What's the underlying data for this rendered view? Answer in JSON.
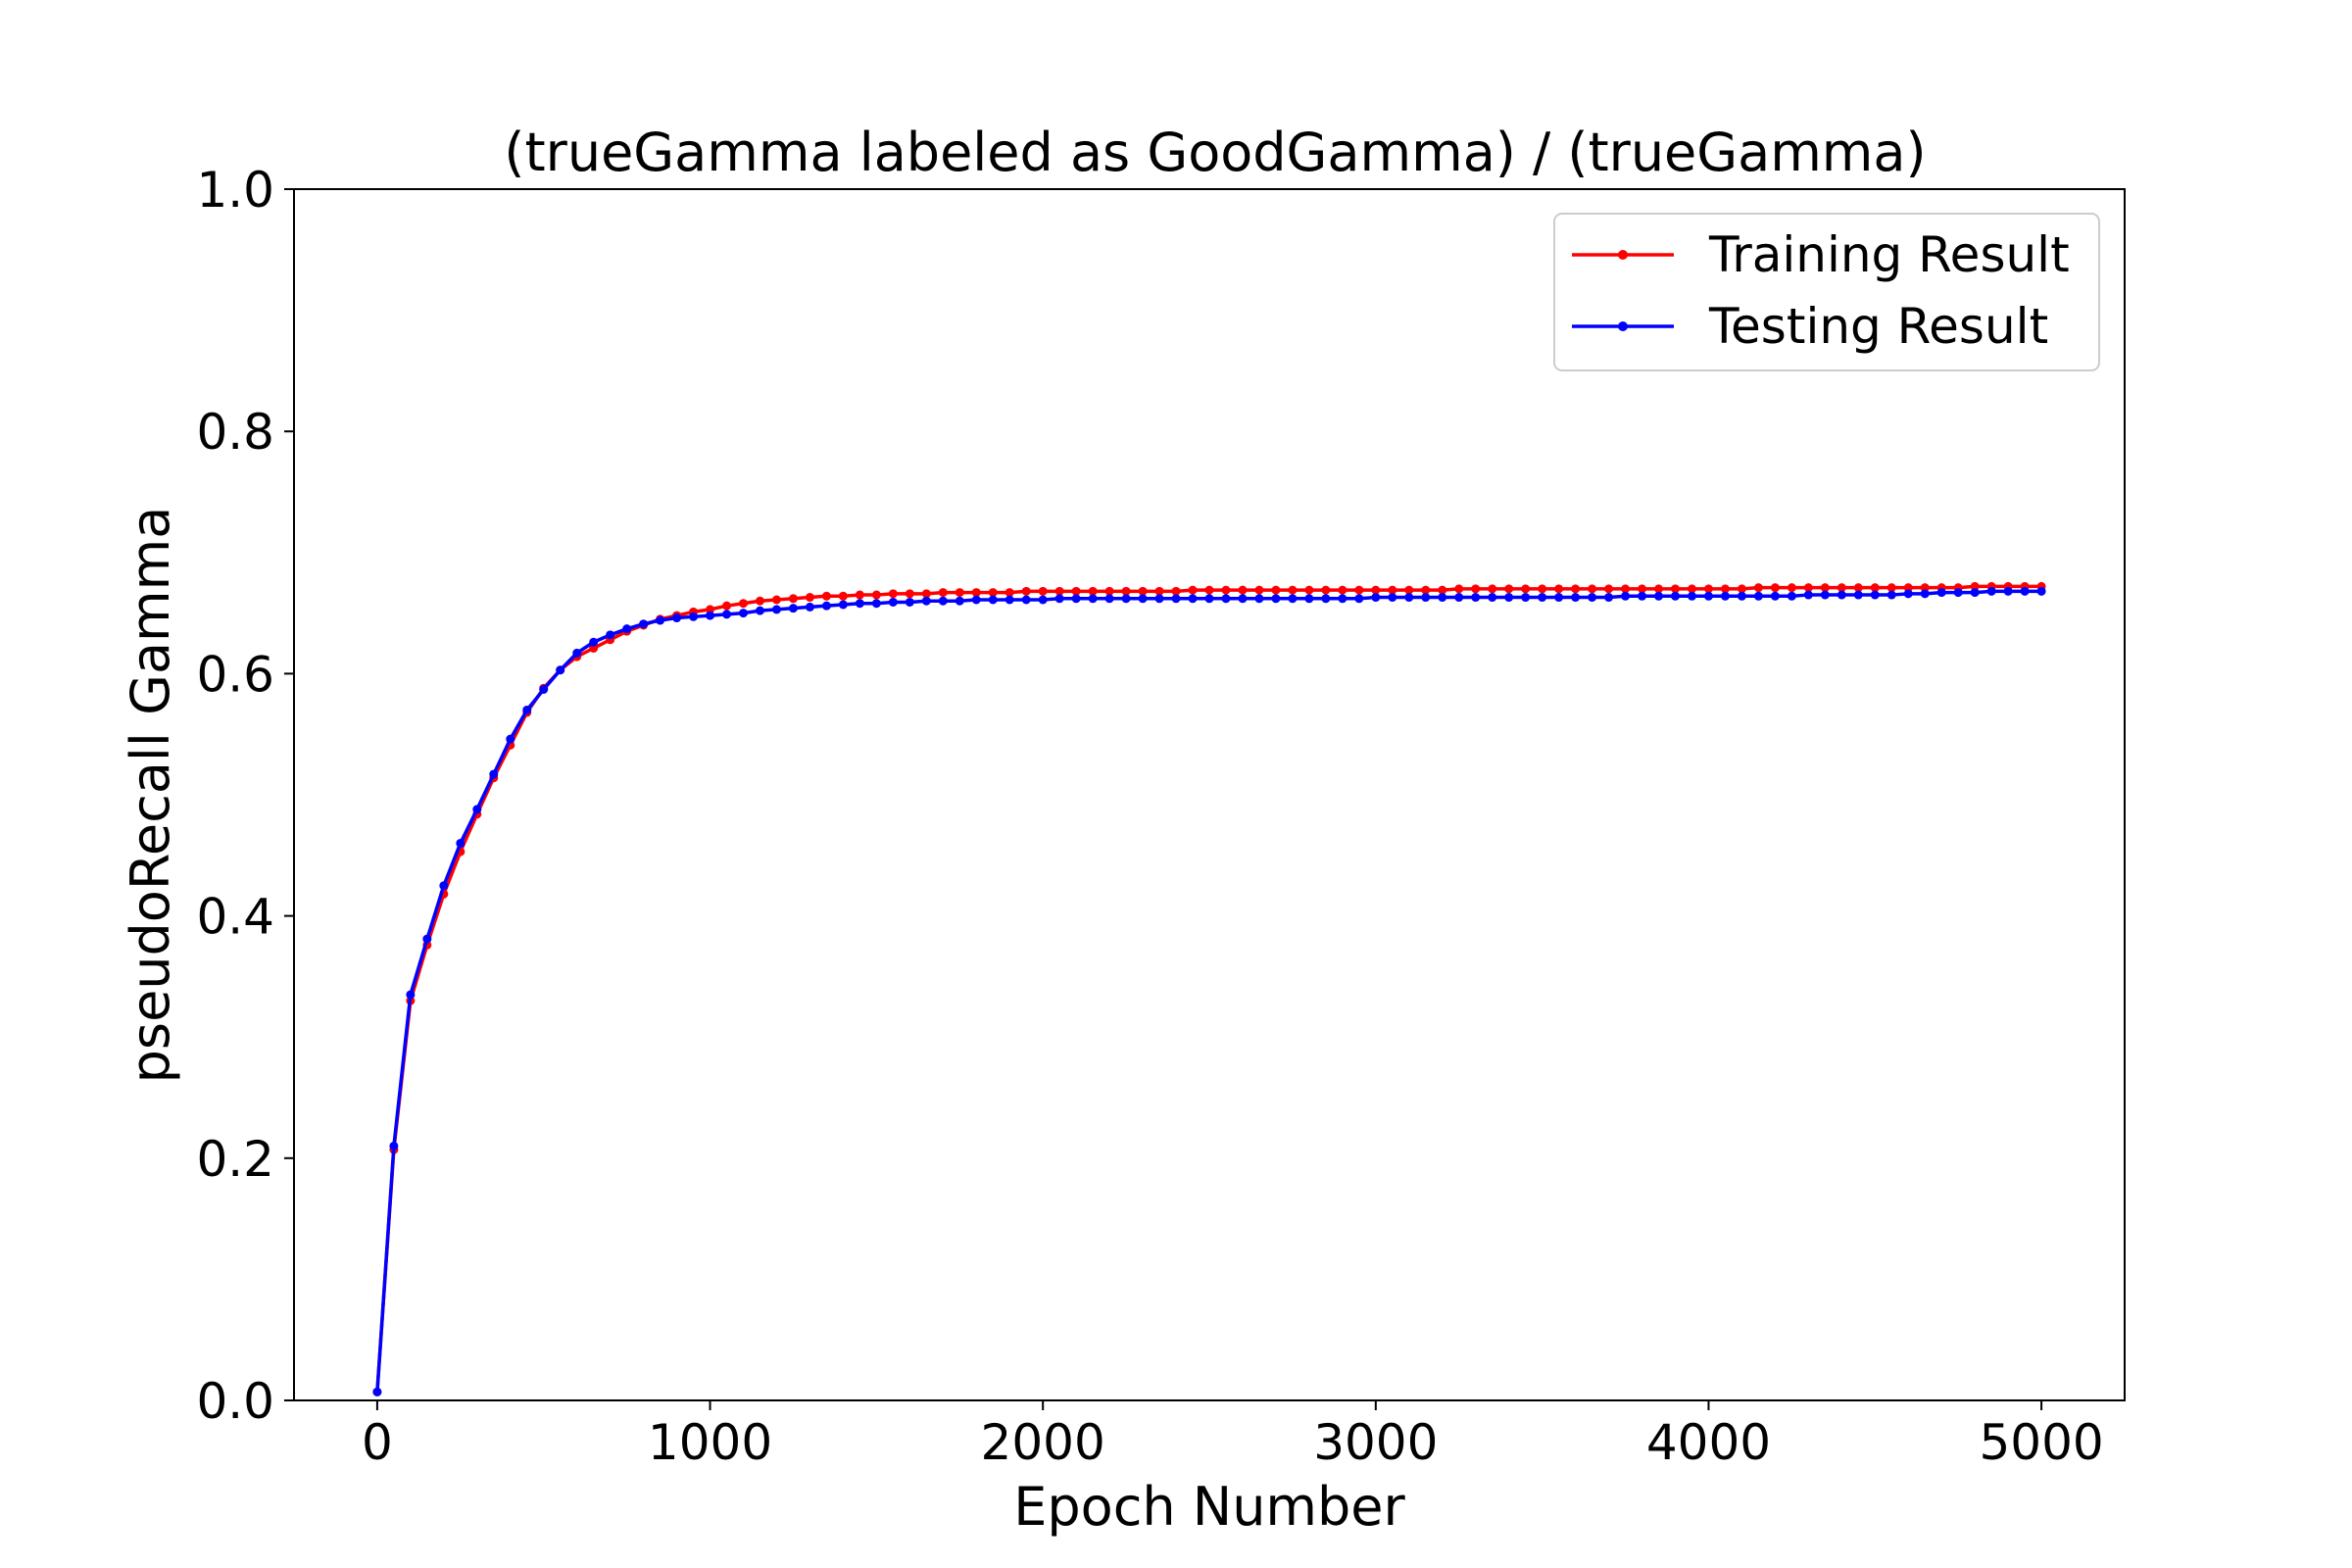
{
  "chart_data": {
    "type": "line",
    "title": "(trueGamma labeled as GoodGamma) / (trueGamma)",
    "xlabel": "Epoch Number",
    "ylabel": "pseudoRecall Gamma",
    "xlim": [
      -250,
      5250
    ],
    "ylim": [
      0.0,
      1.0
    ],
    "xticks": [
      0,
      1000,
      2000,
      3000,
      4000,
      5000
    ],
    "xtick_labels": [
      "0",
      "1000",
      "2000",
      "3000",
      "4000",
      "5000"
    ],
    "yticks": [
      0.0,
      0.2,
      0.4,
      0.6,
      0.8,
      1.0
    ],
    "ytick_labels": [
      "0.0",
      "0.2",
      "0.4",
      "0.6",
      "0.8",
      "1.0"
    ],
    "grid": false,
    "legend_position": "top-right",
    "x": [
      0,
      50,
      100,
      150,
      200,
      250,
      300,
      350,
      400,
      450,
      500,
      550,
      600,
      650,
      700,
      750,
      800,
      850,
      900,
      950,
      1000,
      1050,
      1100,
      1150,
      1200,
      1250,
      1300,
      1350,
      1400,
      1450,
      1500,
      1550,
      1600,
      1650,
      1700,
      1750,
      1800,
      1850,
      1900,
      1950,
      2000,
      2050,
      2100,
      2150,
      2200,
      2250,
      2300,
      2350,
      2400,
      2450,
      2500,
      2550,
      2600,
      2650,
      2700,
      2750,
      2800,
      2850,
      2900,
      2950,
      3000,
      3050,
      3100,
      3150,
      3200,
      3250,
      3300,
      3350,
      3400,
      3450,
      3500,
      3550,
      3600,
      3650,
      3700,
      3750,
      3800,
      3850,
      3900,
      3950,
      4000,
      4050,
      4100,
      4150,
      4200,
      4250,
      4300,
      4350,
      4400,
      4450,
      4500,
      4550,
      4600,
      4650,
      4700,
      4750,
      4800,
      4850,
      4900,
      4950,
      5000
    ],
    "series": [
      {
        "name": "Training Result",
        "color": "#ff0000",
        "values": [
          0.007,
          0.207,
          0.33,
          0.376,
          0.418,
          0.453,
          0.484,
          0.514,
          0.541,
          0.568,
          0.588,
          0.603,
          0.614,
          0.621,
          0.628,
          0.635,
          0.64,
          0.645,
          0.648,
          0.651,
          0.653,
          0.656,
          0.658,
          0.66,
          0.661,
          0.662,
          0.663,
          0.664,
          0.664,
          0.665,
          0.665,
          0.666,
          0.666,
          0.666,
          0.667,
          0.667,
          0.667,
          0.667,
          0.667,
          0.668,
          0.668,
          0.668,
          0.668,
          0.668,
          0.668,
          0.668,
          0.668,
          0.668,
          0.668,
          0.669,
          0.669,
          0.669,
          0.669,
          0.669,
          0.669,
          0.669,
          0.669,
          0.669,
          0.669,
          0.669,
          0.669,
          0.669,
          0.669,
          0.669,
          0.669,
          0.67,
          0.67,
          0.67,
          0.67,
          0.67,
          0.67,
          0.67,
          0.67,
          0.67,
          0.67,
          0.67,
          0.67,
          0.67,
          0.67,
          0.67,
          0.67,
          0.67,
          0.67,
          0.671,
          0.671,
          0.671,
          0.671,
          0.671,
          0.671,
          0.671,
          0.671,
          0.671,
          0.671,
          0.671,
          0.671,
          0.671,
          0.672,
          0.672,
          0.672,
          0.672,
          0.672
        ]
      },
      {
        "name": "Testing Result",
        "color": "#0000ff",
        "values": [
          0.007,
          0.21,
          0.335,
          0.381,
          0.425,
          0.46,
          0.488,
          0.517,
          0.546,
          0.57,
          0.587,
          0.603,
          0.617,
          0.626,
          0.632,
          0.637,
          0.641,
          0.644,
          0.646,
          0.647,
          0.648,
          0.649,
          0.65,
          0.652,
          0.653,
          0.654,
          0.655,
          0.656,
          0.657,
          0.658,
          0.658,
          0.659,
          0.659,
          0.66,
          0.66,
          0.66,
          0.661,
          0.661,
          0.661,
          0.661,
          0.661,
          0.662,
          0.662,
          0.662,
          0.662,
          0.662,
          0.662,
          0.662,
          0.662,
          0.662,
          0.662,
          0.662,
          0.662,
          0.662,
          0.662,
          0.662,
          0.662,
          0.662,
          0.662,
          0.662,
          0.663,
          0.663,
          0.663,
          0.663,
          0.663,
          0.663,
          0.663,
          0.663,
          0.663,
          0.663,
          0.663,
          0.663,
          0.663,
          0.663,
          0.663,
          0.664,
          0.664,
          0.664,
          0.664,
          0.664,
          0.664,
          0.664,
          0.664,
          0.664,
          0.664,
          0.664,
          0.665,
          0.665,
          0.665,
          0.665,
          0.665,
          0.665,
          0.666,
          0.666,
          0.667,
          0.667,
          0.667,
          0.668,
          0.668,
          0.668,
          0.668
        ]
      }
    ]
  }
}
